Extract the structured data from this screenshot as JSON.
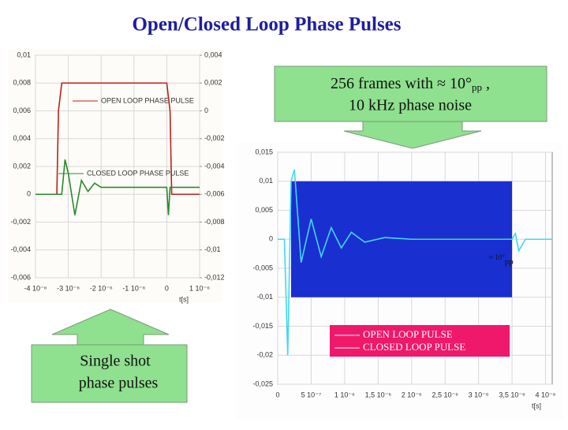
{
  "title": "Open/Closed Loop Phase Pulses",
  "callout_noise": {
    "text": "256 frames with ≈ 10°",
    "sub": "pp",
    "tail": " ,",
    "line2": "10 kHz phase noise"
  },
  "callout_single": {
    "line1": "Single shot",
    "line2": "phase pulses"
  },
  "chart_data": [
    {
      "type": "line",
      "xlabel": "t[s]",
      "xlim": [
        -4e-06,
        1e-06
      ],
      "xticks": [
        {
          "value": -4e-06,
          "label": "-4 10⁻⁶"
        },
        {
          "value": -3e-06,
          "label": "-3 10⁻⁶"
        },
        {
          "value": -2e-06,
          "label": "-2 10⁻⁶"
        },
        {
          "value": -1e-06,
          "label": "-1 10⁻⁶"
        },
        0,
        {
          "value": 1e-06,
          "label": "1 10⁻⁶"
        }
      ],
      "ylim": [
        -0.006,
        0.01
      ],
      "yticks": [
        {
          "value": 0.01,
          "label": "0,01"
        },
        {
          "value": 0.008,
          "label": "0,008"
        },
        {
          "value": 0.006,
          "label": "0,006"
        },
        {
          "value": 0.004,
          "label": "0,004"
        },
        {
          "value": 0.002,
          "label": "0,002"
        },
        0,
        {
          "value": -0.002,
          "label": "-0,002"
        },
        {
          "value": -0.004,
          "label": "-0,004"
        },
        {
          "value": -0.006,
          "label": "-0,006"
        }
      ],
      "y2lim": [
        -0.012,
        0.004
      ],
      "y2ticks": [
        {
          "value": 0.004,
          "label": "0,004"
        },
        {
          "value": 0.002,
          "label": "0,002"
        },
        0,
        {
          "value": -0.002,
          "label": "-0,002"
        },
        {
          "value": -0.004,
          "label": "-0,004"
        },
        {
          "value": -0.006,
          "label": "-0,006"
        },
        {
          "value": -0.008,
          "label": "-0,008"
        },
        {
          "value": -0.01,
          "label": "-0,01"
        },
        {
          "value": -0.012,
          "label": "-0,012"
        }
      ],
      "grid": true,
      "series": [
        {
          "name": "OPEN LOOP PHASE PULSE",
          "color": "#c0201a",
          "x": [
            -4e-06,
            -3.35e-06,
            -3.3e-06,
            -3.2e-06,
            0,
            1e-07,
            1.5e-07,
            1e-06
          ],
          "values": [
            0,
            0,
            0.006,
            0.008,
            0.008,
            0.006,
            0,
            0
          ]
        },
        {
          "name": "CLOSED LOOP PHASE PULSE",
          "color": "#2a8a2a",
          "axis": "y2",
          "x": [
            -4e-06,
            -3.2e-06,
            -3.1e-06,
            -3e-06,
            -2.8e-06,
            -2.6e-06,
            -2.4e-06,
            -2.2e-06,
            -2e-06,
            0,
            5e-08,
            1e-07,
            1e-06
          ],
          "values": [
            -0.006,
            -0.006,
            -0.0035,
            -0.0045,
            -0.0075,
            -0.005,
            -0.0058,
            -0.0052,
            -0.0055,
            -0.0055,
            -0.0075,
            -0.0055,
            -0.0055
          ]
        }
      ]
    },
    {
      "type": "line",
      "xlabel": "t[s]",
      "xlim": [
        0,
        4.1e-06
      ],
      "xticks": [
        0,
        {
          "value": 5e-07,
          "label": "5 10⁻⁷"
        },
        {
          "value": 1e-06,
          "label": "1 10⁻⁶"
        },
        {
          "value": 1.5e-06,
          "label": "1,5 10⁻⁶"
        },
        {
          "value": 2e-06,
          "label": "2 10⁻⁶"
        },
        {
          "value": 2.5e-06,
          "label": "2,5 10⁻⁶"
        },
        {
          "value": 3e-06,
          "label": "3 10⁻⁶"
        },
        {
          "value": 3.5e-06,
          "label": "3,5 10⁻⁶"
        },
        {
          "value": 4e-06,
          "label": "4 10⁻⁶"
        }
      ],
      "ylim": [
        -0.025,
        0.015
      ],
      "yticks": [
        {
          "value": 0.015,
          "label": "0,015"
        },
        {
          "value": 0.01,
          "label": "0,01"
        },
        {
          "value": 0.005,
          "label": "0,005"
        },
        0,
        {
          "value": -0.005,
          "label": "-0,005"
        },
        {
          "value": -0.01,
          "label": "-0,01"
        },
        {
          "value": -0.015,
          "label": "-0,015"
        },
        {
          "value": -0.02,
          "label": "-0,02"
        },
        {
          "value": -0.025,
          "label": "-0,025"
        }
      ],
      "grid": true,
      "annotation": {
        "text": "≈ 10°",
        "sub": "pp"
      },
      "series": [
        {
          "name": "OPEN LOOP PULSE",
          "color": "#1a2fd0",
          "x": [
            2e-07,
            3.5e-06
          ],
          "upper": [
            0.01,
            0.01
          ],
          "lower": [
            -0.01,
            -0.01
          ]
        },
        {
          "name": "CLOSED LOOP PULSE",
          "color": "#40d8f0",
          "x": [
            0,
            1e-07,
            1.5e-07,
            2e-07,
            2.5e-07,
            3.5e-07,
            5e-07,
            6.5e-07,
            8e-07,
            9.5e-07,
            1.1e-06,
            1.3e-06,
            1.6e-06,
            2e-06,
            3.5e-06,
            3.55e-06,
            3.6e-06,
            3.7e-06,
            4.1e-06
          ],
          "values": [
            0,
            0,
            -0.02,
            0.01,
            0.012,
            -0.004,
            0.0035,
            -0.003,
            0.002,
            -0.0015,
            0.0012,
            -0.0005,
            0.0003,
            0,
            0,
            0.001,
            -0.002,
            0,
            0
          ]
        }
      ]
    }
  ]
}
